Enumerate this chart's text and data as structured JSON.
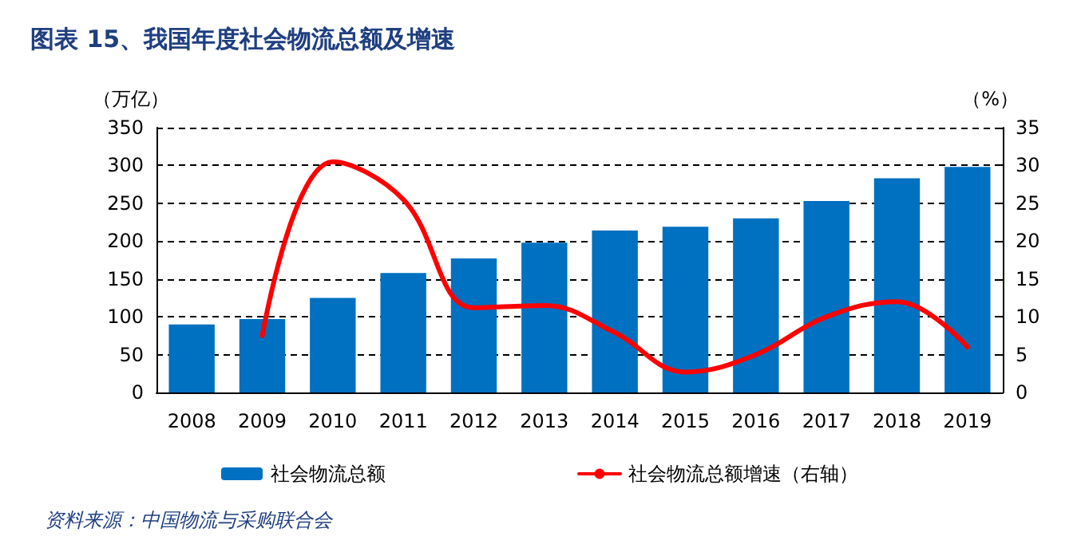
{
  "chart_data": {
    "type": "bar",
    "title": "图表 15、我国年度社会物流总额及增速",
    "ylabel": "（万亿）",
    "y2label": "（%）",
    "categories": [
      "2008",
      "2009",
      "2010",
      "2011",
      "2012",
      "2013",
      "2014",
      "2015",
      "2016",
      "2017",
      "2018",
      "2019"
    ],
    "series": [
      {
        "name": "社会物流总额",
        "color": "#0070c0",
        "values": [
          90,
          97,
          125,
          158,
          177,
          198,
          214,
          219,
          230,
          253,
          283,
          298
        ]
      },
      {
        "name": "社会物流总额增速（右轴）",
        "type": "line",
        "axis": "y2",
        "color": "#ff0000",
        "values": [
          null,
          7.5,
          30.5,
          25.5,
          11.2,
          11.5,
          7.9,
          2.7,
          5.0,
          10.0,
          12.0,
          6.0
        ]
      }
    ],
    "ylim": [
      0,
      350
    ],
    "yticks": [
      0,
      50,
      100,
      150,
      200,
      250,
      300,
      350
    ],
    "y2lim": [
      0,
      35
    ],
    "y2ticks": [
      0,
      5,
      10,
      15,
      20,
      25,
      30,
      35
    ],
    "grid": "y",
    "line_style": "solid",
    "marker": "none",
    "legend": "bottom",
    "annotations": [
      "资料来源：中国物流与采购联合会"
    ]
  }
}
